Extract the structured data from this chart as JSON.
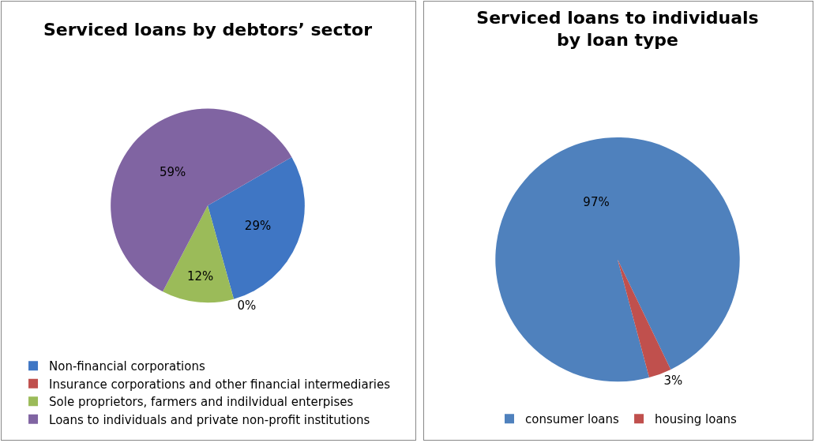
{
  "chart_data": [
    {
      "type": "pie",
      "title": "Serviced loans by debtors’ sector",
      "categories": [
        "Non-financial corporations",
        "Insurance corporations and other financial intermediaries",
        "Sole proprietors, farmers and indilvidual enterpises",
        "Loans to individuals and private non-profit institutions"
      ],
      "values": [
        29,
        0,
        12,
        59
      ],
      "value_labels": [
        "29%",
        "0%",
        "12%",
        "59%"
      ],
      "colors": [
        "#3f76c4",
        "#c0504d",
        "#9bbb59",
        "#8064a2"
      ],
      "legend": "bottom"
    },
    {
      "type": "pie",
      "title": "Serviced loans to individuals\nby loan type",
      "categories": [
        "consumer loans",
        "housing loans"
      ],
      "values": [
        97,
        3
      ],
      "value_labels": [
        "97%",
        "3%"
      ],
      "colors": [
        "#4f81bd",
        "#c0504d"
      ],
      "legend": "bottom"
    }
  ]
}
